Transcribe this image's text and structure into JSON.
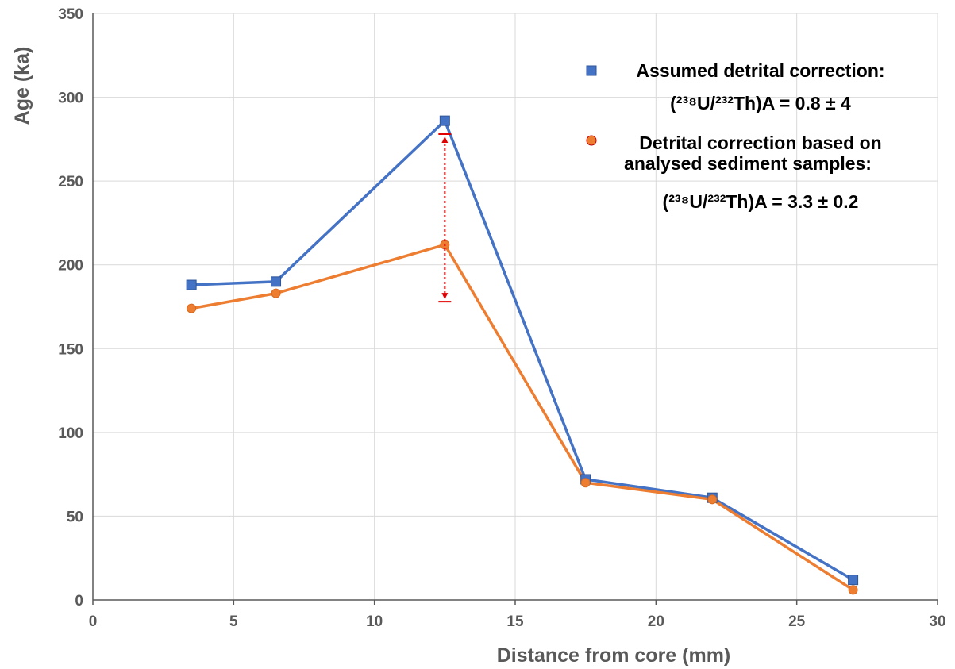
{
  "chart_data": {
    "type": "line",
    "xlabel": "Distance from core (mm)",
    "ylabel": "Age (ka)",
    "xlim": [
      0,
      30
    ],
    "ylim": [
      0,
      350
    ],
    "x_ticks": [
      "0",
      "5",
      "10",
      "15",
      "20",
      "25",
      "30"
    ],
    "y_ticks": [
      "0",
      "50",
      "100",
      "150",
      "200",
      "250",
      "300",
      "350"
    ],
    "grid": true,
    "legend_position": "top-right",
    "series": [
      {
        "name": "Assumed detrital correction:",
        "name_line2": "(²³⁸U/²³²Th)A = 0.8 ± 4",
        "color": "#4472C4",
        "marker": "square",
        "x": [
          3.5,
          6.5,
          12.5,
          17.5,
          22,
          27
        ],
        "values": [
          188,
          190,
          286,
          72,
          61,
          12
        ]
      },
      {
        "name": "Detrital correction based on",
        "name_line2": "analysed sediment samples:",
        "name_line3": "(²³⁸U/²³²Th)A = 3.3 ± 0.2",
        "color": "#ED7D31",
        "marker": "circle",
        "x": [
          3.5,
          6.5,
          12.5,
          17.5,
          22,
          27
        ],
        "values": [
          174,
          183,
          212,
          70,
          60,
          6
        ]
      }
    ],
    "annotation": {
      "type": "double-arrow",
      "color": "#E00000",
      "x": 12.5,
      "y_top": 278,
      "y_bottom": 178
    }
  }
}
